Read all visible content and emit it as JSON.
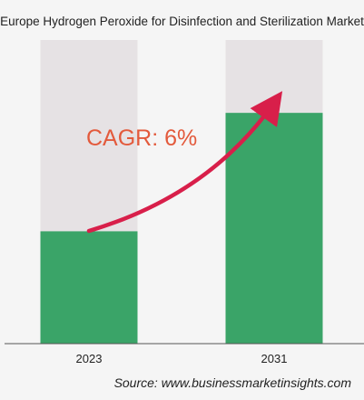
{
  "title": "Europe Hydrogen Peroxide for Disinfection and Sterilization Market",
  "source": "Source: www.businessmarketinsights.com",
  "annotation": "CAGR: 6%",
  "colors": {
    "bar": "#3aa468",
    "track": "#e6e2e4",
    "arrow": "#d81f4a",
    "annotation": "#e35a3c"
  },
  "chart_data": {
    "type": "bar",
    "title": "Europe Hydrogen Peroxide for Disinfection and Sterilization Market",
    "categories": [
      "2023",
      "2031"
    ],
    "values": [
      0.37,
      0.76
    ],
    "value_scale": "relative to bar track height (no y-axis shown)",
    "ylim": [
      0,
      1
    ],
    "grid": false,
    "legend": "none",
    "annotation": "CAGR: 6%"
  }
}
